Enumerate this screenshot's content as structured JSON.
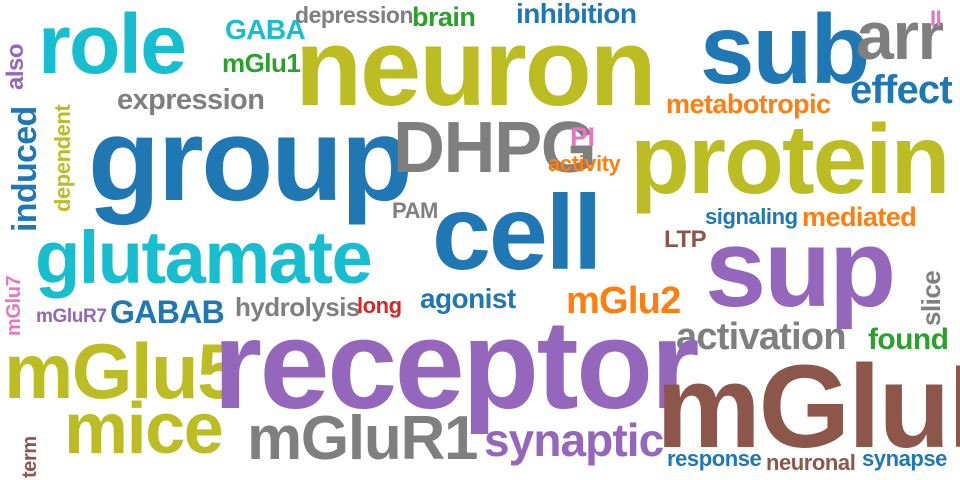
{
  "words": [
    {
      "text": "role",
      "color": "#17becf",
      "weight": "large"
    },
    {
      "text": "GABA",
      "color": "#17becf",
      "weight": "small"
    },
    {
      "text": "depression",
      "color": "#7f7f7f",
      "weight": "small"
    },
    {
      "text": "brain",
      "color": "#2ca02c",
      "weight": "small"
    },
    {
      "text": "inhibition",
      "color": "#1f77b4",
      "weight": "small"
    },
    {
      "text": "mGlu1",
      "color": "#2ca02c",
      "weight": "small"
    },
    {
      "text": "neuron",
      "color": "#bcbd22",
      "weight": "large"
    },
    {
      "text": "sub",
      "color": "#1f77b4",
      "weight": "large"
    },
    {
      "text": "arr",
      "color": "#7f7f7f",
      "weight": "large"
    },
    {
      "text": "II",
      "color": "#e377c2",
      "weight": "small"
    },
    {
      "text": "also",
      "color": "#9467bd",
      "weight": "small"
    },
    {
      "text": "expression",
      "color": "#7f7f7f",
      "weight": "small"
    },
    {
      "text": "effect",
      "color": "#1f77b4",
      "weight": "medium"
    },
    {
      "text": "metabotropic",
      "color": "#ff7f0e",
      "weight": "small"
    },
    {
      "text": "induced",
      "color": "#1f77b4",
      "weight": "small"
    },
    {
      "text": "dependent",
      "color": "#bcbd22",
      "weight": "small"
    },
    {
      "text": "group",
      "color": "#1f77b4",
      "weight": "large"
    },
    {
      "text": "DHPG",
      "color": "#7f7f7f",
      "weight": "large"
    },
    {
      "text": "PI",
      "color": "#e377c2",
      "weight": "small"
    },
    {
      "text": "activity",
      "color": "#ff7f0e",
      "weight": "small"
    },
    {
      "text": "protein",
      "color": "#bcbd22",
      "weight": "large"
    },
    {
      "text": "PAM",
      "color": "#7f7f7f",
      "weight": "small"
    },
    {
      "text": "cell",
      "color": "#1f77b4",
      "weight": "large"
    },
    {
      "text": "signaling",
      "color": "#1f77b4",
      "weight": "small"
    },
    {
      "text": "mediated",
      "color": "#ff7f0e",
      "weight": "small"
    },
    {
      "text": "glutamate",
      "color": "#17becf",
      "weight": "large"
    },
    {
      "text": "LTP",
      "color": "#8c564b",
      "weight": "small"
    },
    {
      "text": "sup",
      "color": "#9467bd",
      "weight": "large"
    },
    {
      "text": "slice",
      "color": "#7f7f7f",
      "weight": "small"
    },
    {
      "text": "mGlu7",
      "color": "#e377c2",
      "weight": "small"
    },
    {
      "text": "mGluR7",
      "color": "#9467bd",
      "weight": "small"
    },
    {
      "text": "GABAB",
      "color": "#1f77b4",
      "weight": "small"
    },
    {
      "text": "hydrolysis",
      "color": "#7f7f7f",
      "weight": "small"
    },
    {
      "text": "long",
      "color": "#d62728",
      "weight": "small"
    },
    {
      "text": "agonist",
      "color": "#1f77b4",
      "weight": "small"
    },
    {
      "text": "mGlu2",
      "color": "#ff7f0e",
      "weight": "medium"
    },
    {
      "text": "activation",
      "color": "#7f7f7f",
      "weight": "medium"
    },
    {
      "text": "found",
      "color": "#2ca02c",
      "weight": "small"
    },
    {
      "text": "mGlu5",
      "color": "#bcbd22",
      "weight": "large"
    },
    {
      "text": "receptor",
      "color": "#9467bd",
      "weight": "large"
    },
    {
      "text": "mGluR",
      "color": "#8c564b",
      "weight": "large"
    },
    {
      "text": "mice",
      "color": "#bcbd22",
      "weight": "large"
    },
    {
      "text": "mGluR1",
      "color": "#7f7f7f",
      "weight": "large"
    },
    {
      "text": "synaptic",
      "color": "#9467bd",
      "weight": "medium"
    },
    {
      "text": "term",
      "color": "#8c564b",
      "weight": "small"
    },
    {
      "text": "response",
      "color": "#1f77b4",
      "weight": "small"
    },
    {
      "text": "neuronal",
      "color": "#8c564b",
      "weight": "small"
    },
    {
      "text": "synapse",
      "color": "#1f77b4",
      "weight": "small"
    }
  ]
}
